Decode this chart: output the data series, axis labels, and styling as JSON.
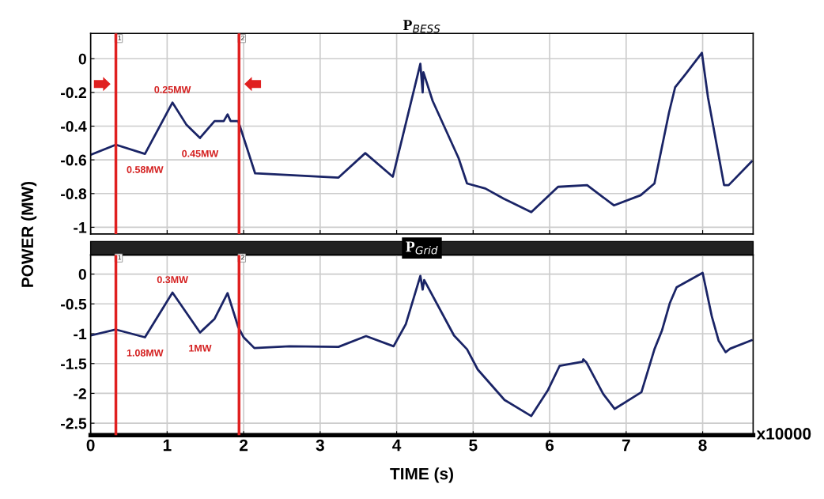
{
  "chart_data": [
    {
      "type": "line",
      "title": "P$_{BESS}$",
      "ylabel": "POWER (MW)",
      "series": [
        {
          "color": "#1a2466",
          "x": [
            0,
            0.33,
            0.71,
            1.07,
            1.25,
            1.43,
            1.62,
            1.74,
            1.79,
            1.83,
            1.93,
            2.15,
            2.6,
            3.24,
            3.59,
            3.95,
            4.31,
            4.34,
            4.35,
            4.47,
            4.81,
            4.92,
            5.16,
            5.4,
            5.76,
            6.11,
            6.49,
            6.84,
            7.19,
            7.37,
            7.56,
            7.64,
            7.78,
            7.99,
            8.07,
            8.28,
            8.34,
            8.64
          ],
          "values": [
            -0.57,
            -0.51,
            -0.565,
            -0.26,
            -0.39,
            -0.47,
            -0.37,
            -0.37,
            -0.33,
            -0.37,
            -0.37,
            -0.68,
            -0.69,
            -0.705,
            -0.56,
            -0.7,
            -0.03,
            -0.2,
            -0.08,
            -0.25,
            -0.59,
            -0.74,
            -0.77,
            -0.83,
            -0.91,
            -0.76,
            -0.75,
            -0.87,
            -0.81,
            -0.74,
            -0.32,
            -0.17,
            -0.09,
            0.035,
            -0.23,
            -0.75,
            -0.75,
            -0.61
          ]
        }
      ],
      "xlim": [
        0,
        8.66
      ],
      "xticks": [
        0,
        1,
        2,
        3,
        4,
        5,
        6,
        7,
        8
      ],
      "ylim": [
        -1.04,
        0.15
      ],
      "yticks": [
        0,
        -0.2,
        -0.4,
        -0.6,
        -0.8,
        -1
      ],
      "ref_lines": [
        {
          "axis": "x",
          "value": 0.33,
          "color": "#e02020"
        },
        {
          "axis": "x",
          "value": 1.94,
          "color": "#e02020"
        }
      ],
      "annotations": [
        {
          "text": "0.25MW",
          "x": 1.07,
          "y": -0.26
        },
        {
          "text": "0.58MW",
          "x": 0.71,
          "y": -0.565
        },
        {
          "text": "0.45MW",
          "x": 1.43,
          "y": -0.47
        },
        {
          "text": "1",
          "x": 0.33,
          "y": 0.12
        },
        {
          "text": "2",
          "x": 1.94,
          "y": 0.12
        }
      ],
      "grid": true,
      "marker": "none",
      "line_style": "solid",
      "tick_labels": "y"
    },
    {
      "type": "line",
      "title": "P$_{Grid}$",
      "xlabel": "TIME (s)",
      "series": [
        {
          "color": "#1a2466",
          "x": [
            0,
            0.33,
            0.71,
            1.07,
            1.43,
            1.62,
            1.79,
            1.93,
            2.0,
            2.14,
            2.6,
            3.24,
            3.6,
            3.96,
            4.12,
            4.31,
            4.34,
            4.36,
            4.75,
            4.92,
            5.06,
            5.41,
            5.76,
            5.98,
            6.13,
            6.43,
            6.44,
            6.48,
            6.7,
            6.85,
            7.2,
            7.37,
            7.47,
            7.57,
            7.66,
            8.0,
            8.12,
            8.21,
            8.3,
            8.36,
            8.64
          ],
          "values": [
            -1.03,
            -0.93,
            -1.06,
            -0.31,
            -0.98,
            -0.75,
            -0.32,
            -0.89,
            -1.06,
            -1.24,
            -1.21,
            -1.22,
            -1.04,
            -1.21,
            -0.84,
            -0.03,
            -0.26,
            -0.1,
            -1.03,
            -1.26,
            -1.6,
            -2.11,
            -2.38,
            -1.94,
            -1.54,
            -1.47,
            -1.43,
            -1.48,
            -2.01,
            -2.26,
            -1.98,
            -1.26,
            -0.94,
            -0.49,
            -0.22,
            0.02,
            -0.71,
            -1.12,
            -1.31,
            -1.25,
            -1.11
          ]
        }
      ],
      "xlim": [
        0,
        8.66
      ],
      "xticks": [
        0,
        1,
        2,
        3,
        4,
        5,
        6,
        7,
        8
      ],
      "ylim": [
        -2.7,
        0.32
      ],
      "yticks": [
        0,
        -0.5,
        -1,
        -1.5,
        -2,
        -2.5
      ],
      "ref_lines": [
        {
          "axis": "x",
          "value": 0.33,
          "color": "#e02020"
        },
        {
          "axis": "x",
          "value": 1.94,
          "color": "#e02020"
        }
      ],
      "annotations": [
        {
          "text": "0.3MW",
          "x": 1.07,
          "y": -0.31
        },
        {
          "text": "1.08MW",
          "x": 0.71,
          "y": -1.06
        },
        {
          "text": "1MW",
          "x": 1.43,
          "y": -0.98
        },
        {
          "text": "1",
          "x": 0.33,
          "y": 0.27
        },
        {
          "text": "2",
          "x": 1.94,
          "y": 0.27
        },
        "x10000"
      ],
      "grid": true,
      "marker": "none",
      "line_style": "solid"
    }
  ]
}
